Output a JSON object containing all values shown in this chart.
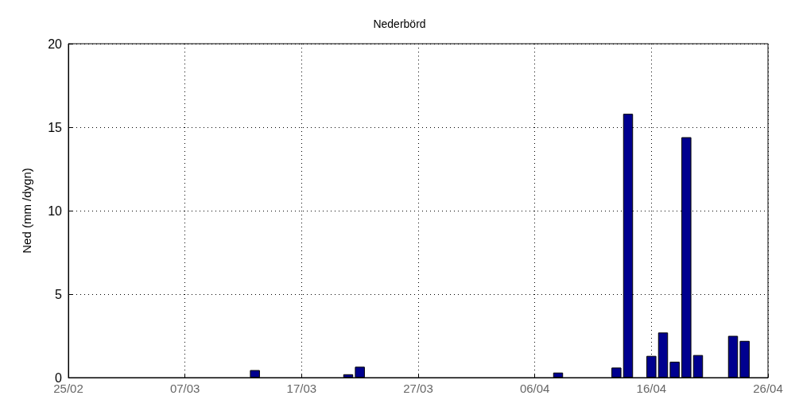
{
  "chart_data": {
    "type": "bar",
    "title": "Nederbörd",
    "ylabel": "Ned (mm /dygn)",
    "x": [
      "--03-13",
      "--03-21",
      "--03-22",
      "--04-08",
      "--04-13",
      "--04-14",
      "--04-16",
      "--04-17",
      "--04-18",
      "--04-19",
      "--04-20",
      "--04-23",
      "--04-24"
    ],
    "series": [
      {
        "color": "#00008f",
        "values": [
          0.45,
          0.2,
          0.65,
          0.3,
          0.6,
          15.8,
          1.3,
          2.7,
          0.95,
          14.4,
          1.35,
          2.5,
          2.2
        ]
      }
    ],
    "xlim": [
      "--02-25",
      "--04-26"
    ],
    "xticks": [
      {
        "value": "--02-25",
        "label": "25/02"
      },
      {
        "value": "--03-07",
        "label": "07/03"
      },
      {
        "value": "--03-17",
        "label": "17/03"
      },
      {
        "value": "--03-27",
        "label": "27/03"
      },
      {
        "value": "--04-06",
        "label": "06/04"
      },
      {
        "value": "--04-16",
        "label": "16/04"
      },
      {
        "value": "--04-26",
        "label": "26/04"
      }
    ],
    "ylim": [
      0,
      20
    ],
    "yticks": [
      0,
      5,
      10,
      15,
      20
    ],
    "grid": true
  }
}
